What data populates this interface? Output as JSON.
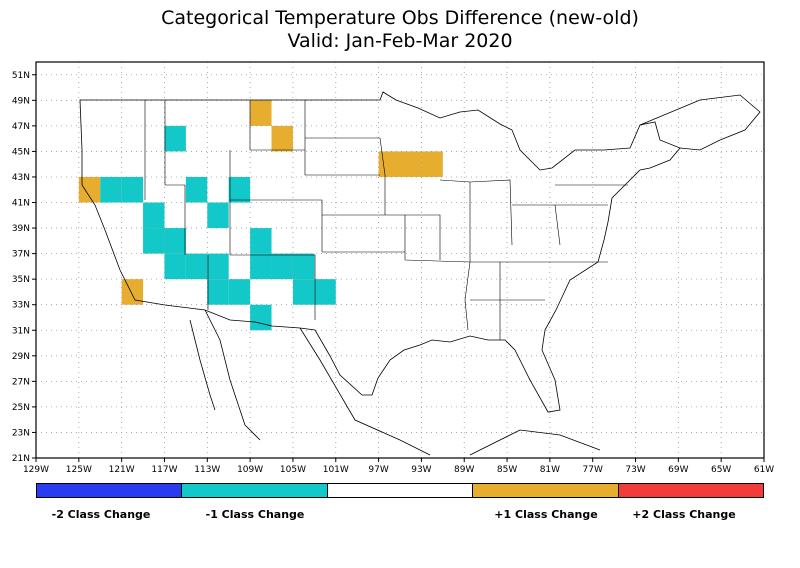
{
  "title": "Categorical Temperature Obs Difference (new-old)",
  "subtitle": "Valid: Jan-Feb-Mar 2020",
  "colors": {
    "minus2": "#2a3cf0",
    "minus1": "#12c8c8",
    "zero": "#ffffff",
    "plus1": "#e6ad2e",
    "plus2": "#f23c3c"
  },
  "legend": [
    {
      "label": "-2 Class Change",
      "color": "#2a3cf0"
    },
    {
      "label": "-1 Class Change",
      "color": "#12c8c8"
    },
    {
      "label": "",
      "color": "#ffffff"
    },
    {
      "label": "+1 Class Change",
      "color": "#e6ad2e"
    },
    {
      "label": "+2 Class Change",
      "color": "#f23c3c"
    }
  ],
  "axes": {
    "x_ticks": [
      "129W",
      "125W",
      "121W",
      "117W",
      "113W",
      "109W",
      "105W",
      "101W",
      "97W",
      "93W",
      "89W",
      "85W",
      "81W",
      "77W",
      "73W",
      "69W",
      "65W",
      "61W"
    ],
    "y_ticks": [
      "21N",
      "23N",
      "25N",
      "27N",
      "29N",
      "31N",
      "33N",
      "35N",
      "37N",
      "39N",
      "41N",
      "43N",
      "45N",
      "47N",
      "49N",
      "51N"
    ],
    "lon_range": [
      -129,
      -61
    ],
    "lat_range": [
      21,
      52
    ]
  },
  "chart_data": {
    "type": "heatmap",
    "grid_cell_degrees": 2,
    "cells": [
      {
        "lon": -124,
        "lat": 42,
        "class_change": 1
      },
      {
        "lon": -122,
        "lat": 42,
        "class_change": -1
      },
      {
        "lon": -120,
        "lat": 42,
        "class_change": -1
      },
      {
        "lon": -116,
        "lat": 46,
        "class_change": -1
      },
      {
        "lon": -114,
        "lat": 42,
        "class_change": -1
      },
      {
        "lon": -110,
        "lat": 42,
        "class_change": -1
      },
      {
        "lon": -118,
        "lat": 40,
        "class_change": -1
      },
      {
        "lon": -112,
        "lat": 40,
        "class_change": -1
      },
      {
        "lon": -118,
        "lat": 38,
        "class_change": -1
      },
      {
        "lon": -116,
        "lat": 38,
        "class_change": -1
      },
      {
        "lon": -108,
        "lat": 38,
        "class_change": -1
      },
      {
        "lon": -116,
        "lat": 36,
        "class_change": -1
      },
      {
        "lon": -114,
        "lat": 36,
        "class_change": -1
      },
      {
        "lon": -112,
        "lat": 36,
        "class_change": -1
      },
      {
        "lon": -108,
        "lat": 36,
        "class_change": -1
      },
      {
        "lon": -106,
        "lat": 36,
        "class_change": -1
      },
      {
        "lon": -104,
        "lat": 36,
        "class_change": -1
      },
      {
        "lon": -112,
        "lat": 34,
        "class_change": -1
      },
      {
        "lon": -110,
        "lat": 34,
        "class_change": -1
      },
      {
        "lon": -104,
        "lat": 34,
        "class_change": -1
      },
      {
        "lon": -102,
        "lat": 34,
        "class_change": -1
      },
      {
        "lon": -108,
        "lat": 32,
        "class_change": -1
      },
      {
        "lon": -120,
        "lat": 34,
        "class_change": 1
      },
      {
        "lon": -108,
        "lat": 48,
        "class_change": 1
      },
      {
        "lon": -106,
        "lat": 46,
        "class_change": 1
      },
      {
        "lon": -96,
        "lat": 44,
        "class_change": 1
      },
      {
        "lon": -94,
        "lat": 44,
        "class_change": 1
      },
      {
        "lon": -92,
        "lat": 44,
        "class_change": 1
      }
    ]
  }
}
